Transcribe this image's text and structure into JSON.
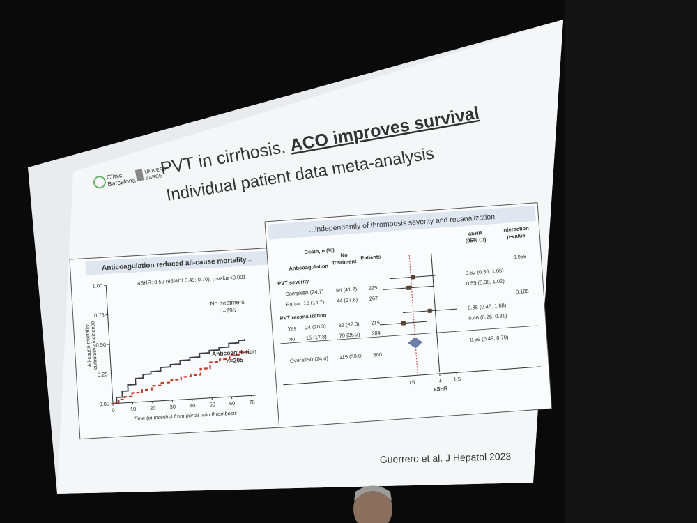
{
  "slide": {
    "logo_left": [
      "Clínic",
      "Barcelona"
    ],
    "logo_right": [
      "UNIVERS",
      "BARCE"
    ],
    "title": "PVT in cirrhosis.",
    "title_emphasis": "ACO improves survival",
    "subtitle": "Individual patient data meta-analysis",
    "citation": "Guerrero et al. J Hepatol 2023"
  },
  "km_panel": {
    "heading": "Anticoagulation reduced all-cause mortality...",
    "annotation": "aSHR: 0.59 (95%CI 0.49; 0.70), p-value<0.001",
    "y_label": [
      "All-cause mortality",
      "cumulative incidence"
    ],
    "x_label": "Time (in months) from portal vein thrombosis",
    "xlim": [
      0,
      72
    ],
    "ylim": [
      0,
      1
    ],
    "xticks": [
      0,
      10,
      20,
      30,
      40,
      50,
      60,
      70
    ],
    "yticks": [
      {
        "value": 0,
        "label": "0.00"
      },
      {
        "value": 0.25,
        "label": "0.25"
      },
      {
        "value": 0.5,
        "label": "0.50"
      },
      {
        "value": 0.75,
        "label": "0.75"
      },
      {
        "value": 1,
        "label": "1.00"
      }
    ],
    "series": [
      {
        "name": "No treatment",
        "n_label": "n=295",
        "color": "#3a3a44",
        "x": [
          0,
          2,
          5,
          8,
          12,
          16,
          20,
          25,
          30,
          35,
          40,
          45,
          50,
          55,
          60,
          65,
          68
        ],
        "values": [
          0,
          0.05,
          0.1,
          0.15,
          0.2,
          0.23,
          0.25,
          0.28,
          0.3,
          0.33,
          0.35,
          0.38,
          0.4,
          0.42,
          0.45,
          0.47,
          0.48
        ]
      },
      {
        "name": "Anticoagulation",
        "n_label": "n=205",
        "color": "#c0392b",
        "x": [
          0,
          3,
          6,
          10,
          15,
          20,
          25,
          30,
          35,
          40,
          45,
          50,
          55,
          60,
          65,
          70
        ],
        "values": [
          0,
          0.03,
          0.05,
          0.08,
          0.1,
          0.13,
          0.15,
          0.17,
          0.19,
          0.2,
          0.25,
          0.3,
          0.32,
          0.35,
          0.37,
          0.38
        ]
      }
    ]
  },
  "forest_panel": {
    "heading": "...independently of thrombosis severity and recanalization",
    "col_death": "Death, n (%)",
    "col_anticoag": "Anticoagulation",
    "col_notreat": [
      "No",
      "treatment"
    ],
    "col_patients": "Patients",
    "col_ashr": [
      "aSHR",
      "(95% CI)"
    ],
    "col_p": [
      "Interaction",
      "p-value"
    ],
    "groups": [
      {
        "label": "PVT severity",
        "p": 0.958,
        "rows": [
          {
            "label": "Complete",
            "anticoag": "23 (24.7)",
            "no_treatment": "54 (41.2)",
            "patients": 225,
            "ci": "0.62 (0.36, 1.06)",
            "hr": 0.62,
            "lo": 0.36,
            "hi": 1.06
          },
          {
            "label": "Partial",
            "anticoag": "16 (14.7)",
            "no_treatment": "44 (27.8)",
            "patients": 267,
            "ci": "0.55 (0.30, 1.02)",
            "hr": 0.55,
            "lo": 0.3,
            "hi": 1.02
          }
        ]
      },
      {
        "label": "PVT recanalization",
        "p": 0.185,
        "rows": [
          {
            "label": "Yes",
            "anticoag": "24 (20.3)",
            "no_treatment": "32 (32.3)",
            "patients": 215,
            "ci": "0.88 (0.46, 1.68)",
            "hr": 0.88,
            "lo": 0.46,
            "hi": 1.68
          },
          {
            "label": "No",
            "anticoag": "15 (17.8)",
            "no_treatment": "70 (35.2)",
            "patients": 284,
            "ci": "0.46 (0.26, 0.81)",
            "hr": 0.46,
            "lo": 0.26,
            "hi": 0.81
          }
        ]
      }
    ],
    "overall": {
      "label": "Overall",
      "anticoag": "50 (24.4)",
      "no_treatment": "115 (39.0)",
      "patients": 500,
      "ci": "0.59 (0.49, 0.70)",
      "hr": 0.59,
      "lo": 0.49,
      "hi": 0.7
    },
    "xticks": [
      0.5,
      1,
      1.5
    ],
    "x_label": "aSHR"
  }
}
